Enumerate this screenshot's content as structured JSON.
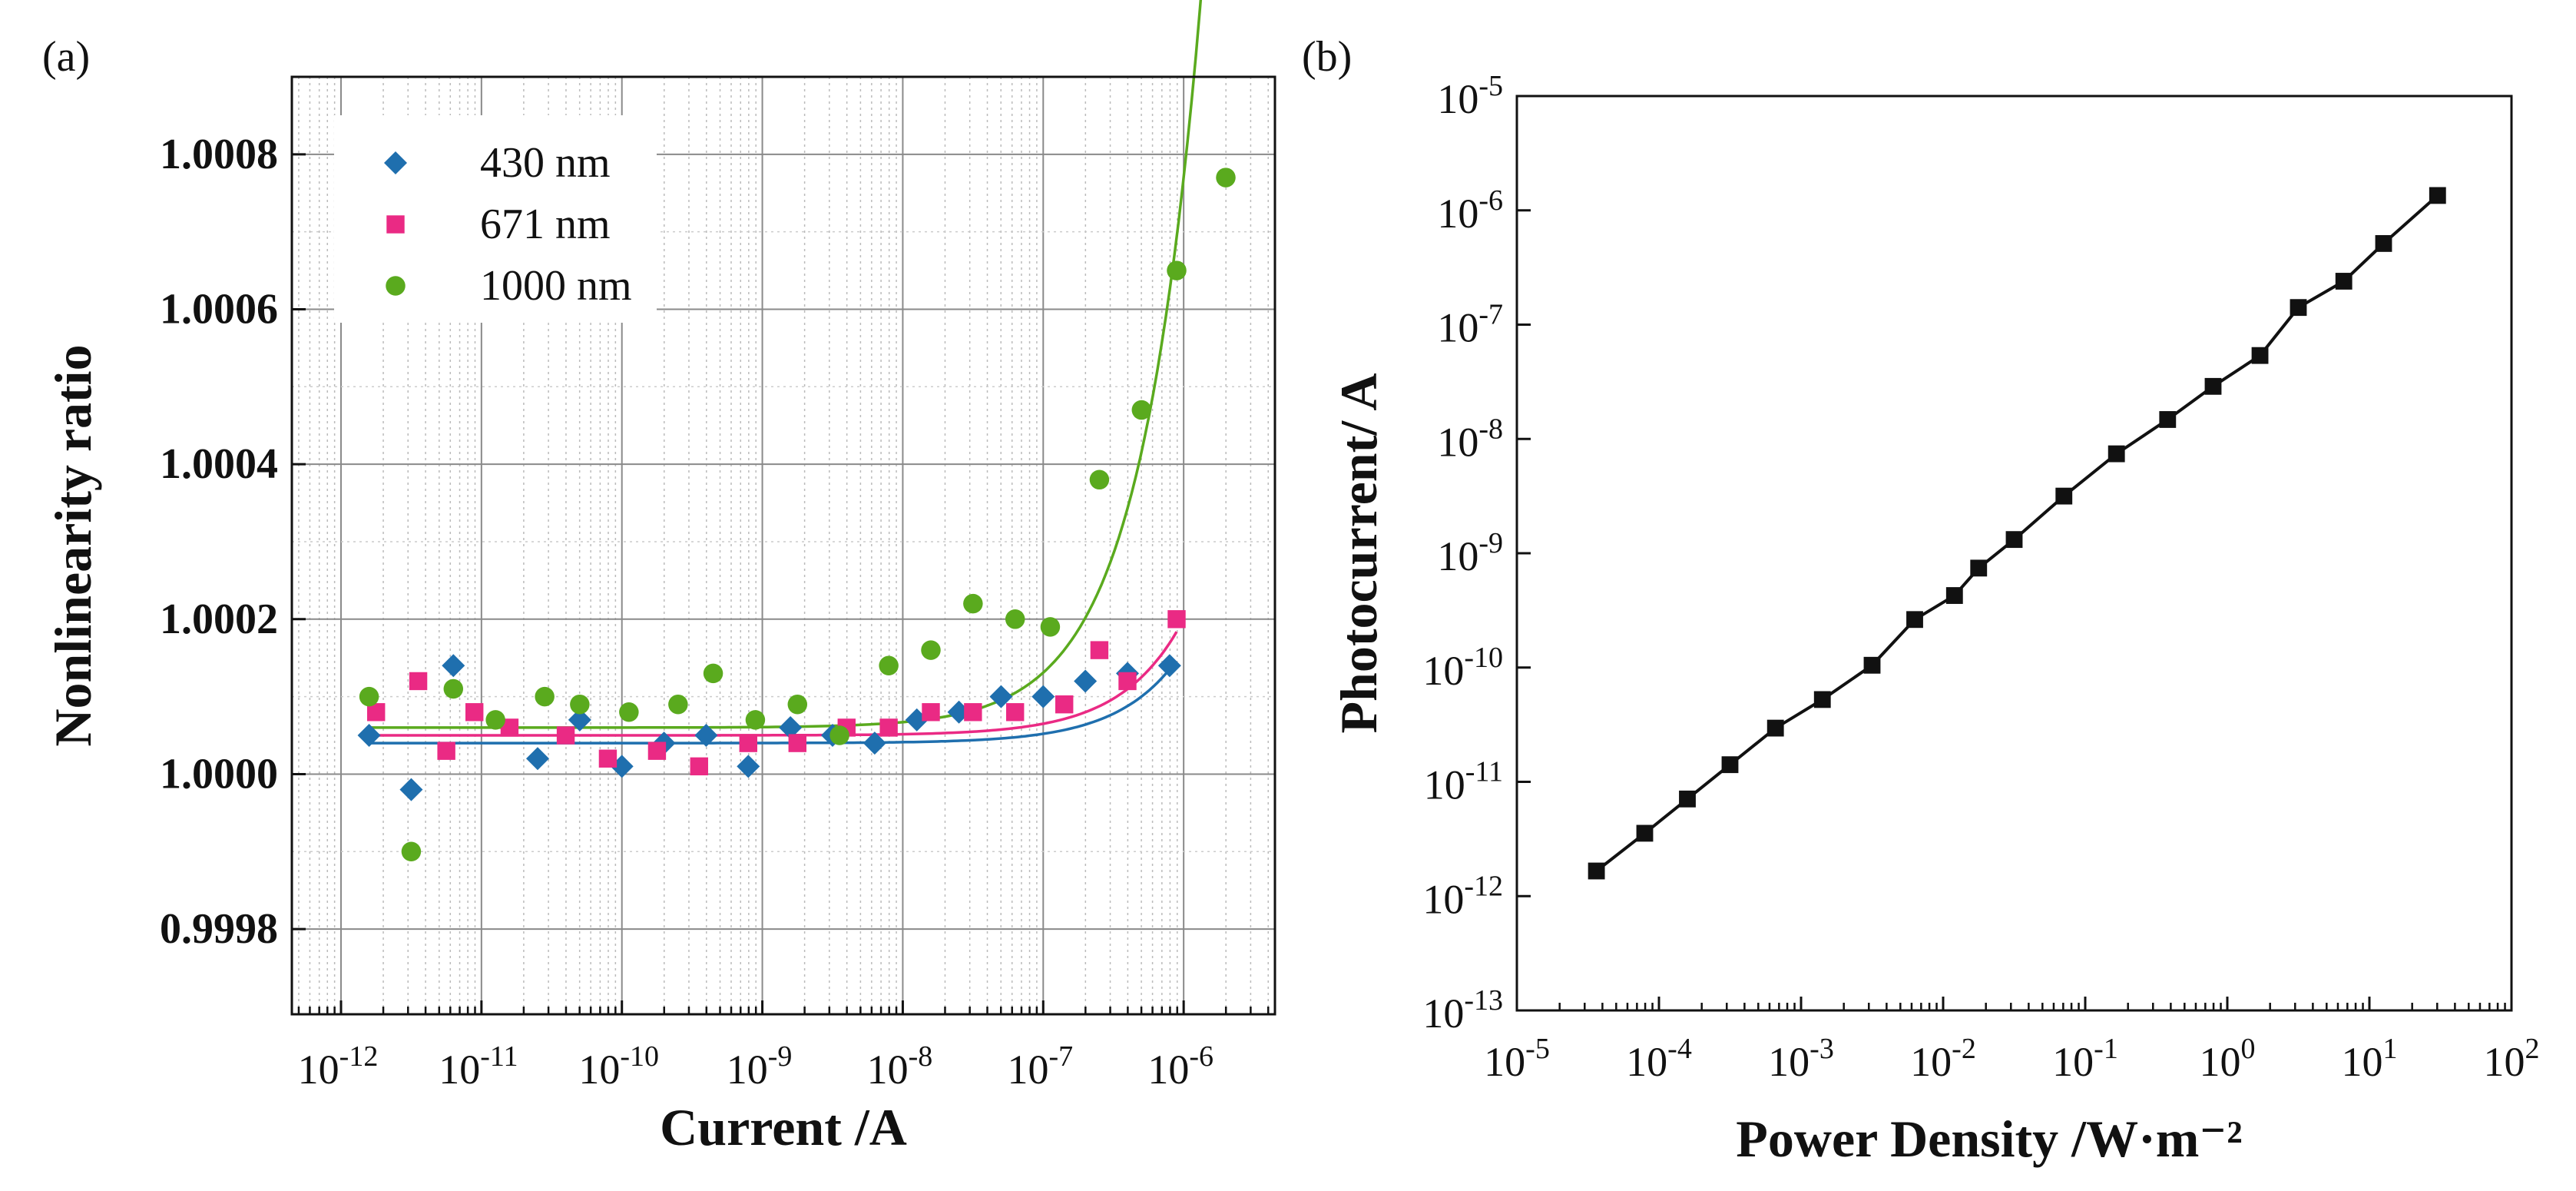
{
  "chart_data": [
    {
      "panel_label": "(a)",
      "type": "scatter",
      "xscale": "log",
      "xlabel": "Current /A",
      "ylabel": "Nonlinearity ratio",
      "xlim_exp": [
        -12.35,
        -5.35
      ],
      "ylim": [
        0.99969,
        1.0009
      ],
      "x_tick_base": "10",
      "x_tick_exponents": [
        "-12",
        "-11",
        "-10",
        "-9",
        "-8",
        "-7",
        "-6"
      ],
      "y_ticks": [
        0.9998,
        1.0,
        1.0002,
        1.0004,
        1.0006,
        1.0008
      ],
      "y_tick_labels": [
        "0.9998",
        "1.0000",
        "1.0002",
        "1.0004",
        "1.0006",
        "1.0008"
      ],
      "grid": true,
      "legend_position": "top-left",
      "series": [
        {
          "name": "430 nm",
          "marker": "diamond",
          "color": "#1f6fae",
          "x_exp": [
            -11.8,
            -11.5,
            -11.2,
            -10.6,
            -10.3,
            -10.0,
            -9.7,
            -9.4,
            -9.1,
            -8.8,
            -8.5,
            -8.2,
            -7.9,
            -7.6,
            -7.3,
            -7.0,
            -6.7,
            -6.4,
            -6.1
          ],
          "values": [
            1.00005,
            0.99998,
            1.00014,
            1.00002,
            1.00007,
            1.00001,
            1.00004,
            1.00005,
            1.00001,
            1.00006,
            1.00005,
            1.00004,
            1.00007,
            1.00008,
            1.0001,
            1.0001,
            1.00012,
            1.00013,
            1.00014
          ],
          "fit_a": 1.00004,
          "fit_b": 0.00012
        },
        {
          "name": "671 nm",
          "marker": "square",
          "color": "#ea2a84",
          "x_exp": [
            -11.75,
            -11.45,
            -11.25,
            -11.05,
            -10.8,
            -10.4,
            -10.1,
            -9.75,
            -9.45,
            -9.1,
            -8.75,
            -8.4,
            -8.1,
            -7.8,
            -7.5,
            -7.2,
            -6.85,
            -6.6,
            -6.4,
            -6.05
          ],
          "values": [
            1.00008,
            1.00012,
            1.00003,
            1.00008,
            1.00006,
            1.00005,
            1.00002,
            1.00003,
            1.00001,
            1.00004,
            1.00004,
            1.00006,
            1.00006,
            1.00008,
            1.00008,
            1.00008,
            1.00009,
            1.00016,
            1.00012,
            1.0002
          ],
          "fit_a": 1.00005,
          "fit_b": 0.00015
        },
        {
          "name": "1000 nm",
          "marker": "circle",
          "color": "#5aaa1e",
          "x_exp": [
            -11.8,
            -11.5,
            -11.2,
            -10.9,
            -10.55,
            -10.3,
            -9.95,
            -9.6,
            -9.35,
            -9.05,
            -8.75,
            -8.45,
            -8.1,
            -7.8,
            -7.5,
            -7.2,
            -6.95,
            -6.6,
            -6.3,
            -6.05,
            -5.7
          ],
          "values": [
            1.0001,
            0.9999,
            1.00011,
            1.00007,
            1.0001,
            1.00009,
            1.00008,
            1.00009,
            1.00013,
            1.00007,
            1.00009,
            1.00005,
            1.00014,
            1.00016,
            1.00022,
            1.0002,
            1.00019,
            1.00038,
            1.00047,
            1.00065,
            1.00077
          ],
          "fit_a": 1.00006,
          "fit_b": 0.00071
        }
      ]
    },
    {
      "panel_label": "(b)",
      "type": "line",
      "xscale": "log",
      "yscale": "log",
      "xlabel": "Power Density /W·m⁻²",
      "ylabel": "Photocurrent/ A",
      "xlim_exp": [
        -5,
        2
      ],
      "ylim_exp": [
        -13,
        -5
      ],
      "x_tick_base": "10",
      "x_tick_exponents": [
        "-5",
        "-4",
        "-3",
        "-2",
        "-1",
        "0",
        "1",
        "2"
      ],
      "y_tick_base": "10",
      "y_tick_exponents": [
        "-13",
        "-12",
        "-11",
        "-10",
        "-9",
        "-8",
        "-7",
        "-6",
        "-5"
      ],
      "grid": false,
      "series": [
        {
          "name": "Photocurrent",
          "marker": "square",
          "color": "#111111",
          "x_exp": [
            -4.44,
            -4.1,
            -3.8,
            -3.5,
            -3.18,
            -2.85,
            -2.5,
            -2.2,
            -1.92,
            -1.75,
            -1.5,
            -1.15,
            -0.78,
            -0.42,
            -0.1,
            0.23,
            0.5,
            0.82,
            1.1,
            1.48
          ],
          "y_exp": [
            -11.78,
            -11.45,
            -11.15,
            -10.85,
            -10.53,
            -10.28,
            -9.98,
            -9.58,
            -9.37,
            -9.13,
            -8.88,
            -8.5,
            -8.13,
            -7.83,
            -7.54,
            -7.27,
            -6.85,
            -6.62,
            -6.29,
            -5.87
          ]
        }
      ]
    }
  ]
}
